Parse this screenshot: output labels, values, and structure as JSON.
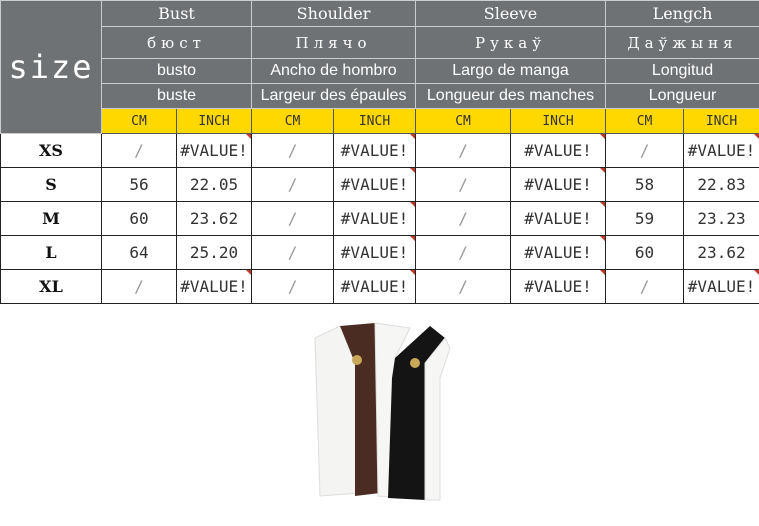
{
  "size_label": "size",
  "columns": [
    {
      "en": "Bust",
      "ru": "бюст",
      "es": "busto",
      "fr": "buste"
    },
    {
      "en": "Shoulder",
      "ru": "Плячо",
      "es": "Ancho de hombro",
      "fr": "Largeur des épaules"
    },
    {
      "en": "Sleeve",
      "ru": "Рукаў",
      "es": "Largo de manga",
      "fr": "Longueur des manches"
    },
    {
      "en": "Lengch",
      "ru": "Даўжыня",
      "es": "Longitud",
      "fr": "Longueur"
    }
  ],
  "units": {
    "cm": "CM",
    "inch": "INCH"
  },
  "rows": [
    {
      "size": "XS",
      "cells": [
        "/",
        "#VALUE!",
        "/",
        "#VALUE!",
        "/",
        "#VALUE!",
        "/",
        "#VALUE!"
      ]
    },
    {
      "size": "S",
      "cells": [
        "56",
        "22.05",
        "/",
        "#VALUE!",
        "/",
        "#VALUE!",
        "58",
        "22.83"
      ]
    },
    {
      "size": "M",
      "cells": [
        "60",
        "23.62",
        "/",
        "#VALUE!",
        "/",
        "#VALUE!",
        "59",
        "23.23"
      ]
    },
    {
      "size": "L",
      "cells": [
        "64",
        "25.20",
        "/",
        "#VALUE!",
        "/",
        "#VALUE!",
        "60",
        "23.62"
      ]
    },
    {
      "size": "XL",
      "cells": [
        "/",
        "#VALUE!",
        "/",
        "#VALUE!",
        "/",
        "#VALUE!",
        "/",
        "#VALUE!"
      ]
    }
  ],
  "colors": {
    "header": "#6e7275",
    "units": "#ffd800"
  }
}
